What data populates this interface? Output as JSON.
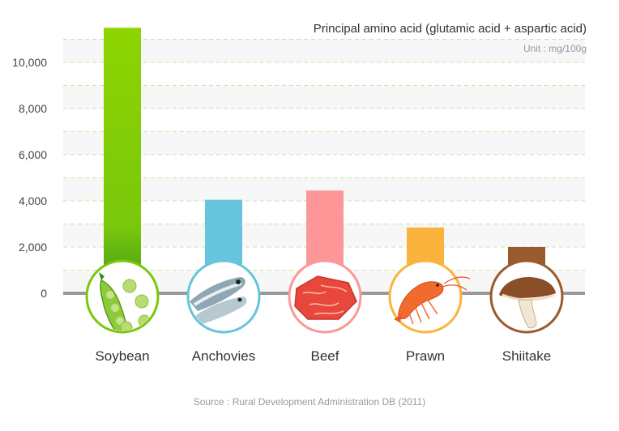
{
  "chart_data": {
    "type": "bar",
    "title": "Principal amino acid (glutamic acid + aspartic acid)",
    "unit": "Unit : mg/100g",
    "source": "Source : Rural Development Administration DB (2011)",
    "categories": [
      "Soybean",
      "Anchovies",
      "Beef",
      "Prawn",
      "Shiitake"
    ],
    "values": [
      11500,
      4050,
      4450,
      2850,
      2000
    ],
    "ylim": [
      0,
      11500
    ],
    "yticks": [
      0,
      2000,
      4000,
      6000,
      8000,
      10000
    ],
    "ytick_labels": [
      "0",
      "2,000",
      "4,000",
      "6,000",
      "8,000",
      "10,000"
    ],
    "grid": true,
    "colors": [
      "#7ac70c",
      "#66c5dc",
      "#fd9797",
      "#fbb33b",
      "#9a5a2e"
    ],
    "icons": [
      "soybean-pod-icon",
      "anchovy-fish-icon",
      "beef-steak-icon",
      "prawn-icon",
      "shiitake-mushroom-icon"
    ]
  }
}
